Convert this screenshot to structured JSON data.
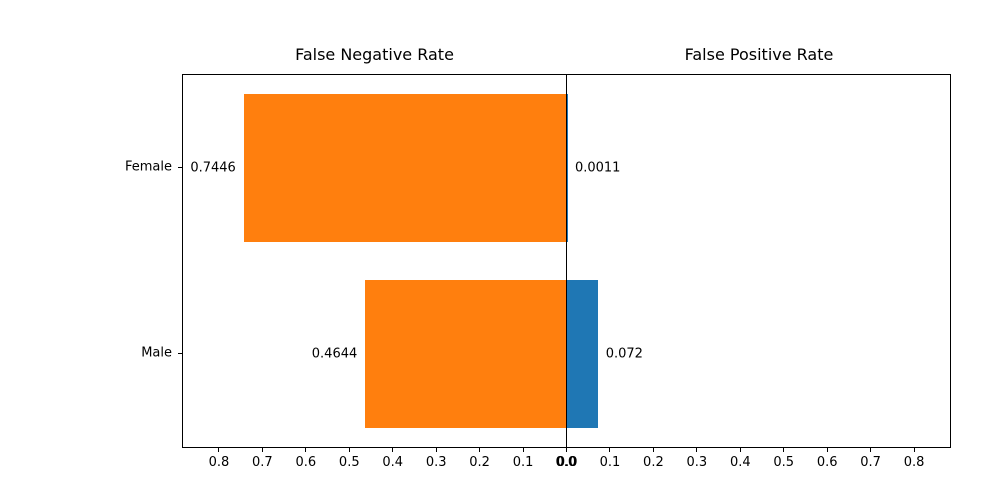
{
  "figure": {
    "background": "#ffffff",
    "text_color": "#000000",
    "axis_color": "#000000"
  },
  "chart_data": {
    "type": "bar",
    "orientation": "horizontal_diverging",
    "categories": [
      "Female",
      "Male"
    ],
    "series": [
      {
        "name": "False Negative Rate",
        "side": "left",
        "color": "#ff7f0e",
        "values": [
          0.7446,
          0.4644
        ],
        "labels": [
          "0.7446",
          "0.4644"
        ]
      },
      {
        "name": "False Positive Rate",
        "side": "right",
        "color": "#1f77b4",
        "values": [
          0.0011,
          0.072
        ],
        "labels": [
          "0.0011",
          "0.072"
        ]
      }
    ],
    "x_tick_values": [
      0.0,
      0.1,
      0.2,
      0.3,
      0.4,
      0.5,
      0.6,
      0.7,
      0.8
    ],
    "x_tick_labels": [
      "0.0",
      "0.1",
      "0.2",
      "0.3",
      "0.4",
      "0.5",
      "0.6",
      "0.7",
      "0.8"
    ],
    "xlim": [
      0,
      0.885
    ],
    "bar_height_fraction": 0.8,
    "grid": false,
    "legend": false
  }
}
